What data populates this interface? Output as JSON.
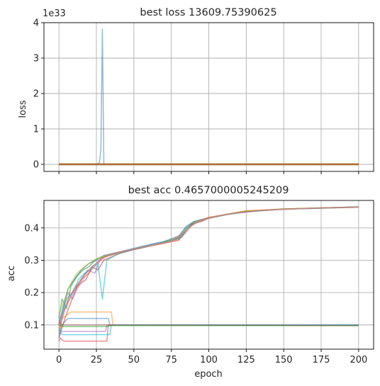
{
  "chart_data": [
    {
      "type": "line",
      "title": "best loss 13609.75390625",
      "xlabel": "",
      "ylabel": "loss",
      "offset_text": "1e33",
      "xlim": [
        -10,
        210
      ],
      "ylim": [
        -0.2,
        4.0
      ],
      "xticks": [
        0,
        25,
        50,
        75,
        100,
        125,
        150,
        175,
        200
      ],
      "yticks": [
        0,
        1,
        2,
        3,
        4
      ],
      "ytick_labels": [
        "0",
        "1",
        "2",
        "3",
        "4"
      ],
      "grid": true,
      "series": [
        {
          "color": "#1f77b4",
          "alpha": 0.5,
          "x": [
            0,
            25,
            27,
            28,
            29,
            30,
            200
          ],
          "y": [
            0,
            0,
            0.05,
            0.4,
            3.82,
            0,
            0
          ]
        },
        {
          "color": "#17becf",
          "alpha": 0.6,
          "x": [
            0,
            200
          ],
          "y": [
            0,
            0
          ]
        },
        {
          "color": "#2ca02c",
          "alpha": 0.6,
          "x": [
            0,
            200
          ],
          "y": [
            0,
            0
          ]
        },
        {
          "color": "#ff7f0e",
          "alpha": 0.5,
          "x": [
            0,
            200
          ],
          "y": [
            0,
            0
          ]
        },
        {
          "color": "#d62728",
          "alpha": 0.4,
          "x": [
            0,
            200
          ],
          "y": [
            0,
            0
          ]
        }
      ]
    },
    {
      "type": "line",
      "title": "best acc 0.4657000005245209",
      "xlabel": "epoch",
      "ylabel": "acc",
      "xlim": [
        -10,
        210
      ],
      "ylim": [
        0.025,
        0.485
      ],
      "xticks": [
        0,
        25,
        50,
        75,
        100,
        125,
        150,
        175,
        200
      ],
      "xtick_labels": [
        "0",
        "25",
        "50",
        "75",
        "100",
        "125",
        "150",
        "175",
        "200"
      ],
      "yticks": [
        0.1,
        0.2,
        0.3,
        0.4
      ],
      "ytick_labels": [
        "0.1",
        "0.2",
        "0.3",
        "0.4"
      ],
      "grid": true,
      "series": [
        {
          "color": "#1f77b4",
          "alpha": 0.6,
          "x": [
            0,
            3,
            6,
            10,
            15,
            20,
            25,
            30,
            40,
            50,
            60,
            70,
            80,
            85,
            90,
            100,
            110,
            125,
            150,
            175,
            200
          ],
          "y": [
            0.1,
            0.16,
            0.21,
            0.24,
            0.27,
            0.29,
            0.3,
            0.315,
            0.325,
            0.337,
            0.348,
            0.358,
            0.375,
            0.405,
            0.42,
            0.432,
            0.44,
            0.452,
            0.458,
            0.462,
            0.465
          ]
        },
        {
          "color": "#2ca02c",
          "alpha": 0.6,
          "x": [
            0,
            2,
            5,
            8,
            12,
            16,
            20,
            25,
            30,
            40,
            50,
            60,
            70,
            80,
            85,
            90,
            100,
            110,
            125,
            150,
            175,
            200
          ],
          "y": [
            0.12,
            0.18,
            0.15,
            0.22,
            0.25,
            0.27,
            0.28,
            0.305,
            0.31,
            0.322,
            0.335,
            0.345,
            0.356,
            0.37,
            0.4,
            0.418,
            0.43,
            0.44,
            0.45,
            0.458,
            0.461,
            0.464
          ]
        },
        {
          "color": "#ff7f0e",
          "alpha": 0.6,
          "x": [
            0,
            3,
            7,
            11,
            15,
            20,
            25,
            30,
            40,
            50,
            60,
            70,
            80,
            86,
            92,
            100,
            110,
            125,
            150,
            175,
            200
          ],
          "y": [
            0.09,
            0.14,
            0.19,
            0.21,
            0.24,
            0.26,
            0.29,
            0.31,
            0.323,
            0.334,
            0.344,
            0.355,
            0.365,
            0.4,
            0.42,
            0.433,
            0.441,
            0.453,
            0.459,
            0.462,
            0.465
          ]
        },
        {
          "color": "#d62728",
          "alpha": 0.55,
          "x": [
            0,
            4,
            8,
            12,
            18,
            22,
            26,
            30,
            40,
            50,
            60,
            70,
            80,
            88,
            95,
            100,
            112,
            125,
            150,
            175,
            200
          ],
          "y": [
            0.06,
            0.12,
            0.17,
            0.22,
            0.24,
            0.28,
            0.27,
            0.3,
            0.32,
            0.333,
            0.343,
            0.352,
            0.362,
            0.41,
            0.42,
            0.43,
            0.442,
            0.452,
            0.458,
            0.462,
            0.464
          ]
        },
        {
          "color": "#9467bd",
          "alpha": 0.55,
          "x": [
            0,
            3,
            6,
            9,
            14,
            19,
            24,
            28,
            35,
            45,
            55,
            65,
            75,
            82,
            88,
            95,
            105,
            120,
            140,
            170,
            200
          ],
          "y": [
            0.11,
            0.15,
            0.2,
            0.18,
            0.23,
            0.27,
            0.26,
            0.31,
            0.32,
            0.33,
            0.34,
            0.35,
            0.36,
            0.38,
            0.41,
            0.425,
            0.436,
            0.448,
            0.456,
            0.461,
            0.465
          ]
        },
        {
          "color": "#17becf",
          "alpha": 0.6,
          "x": [
            0,
            2,
            5,
            9,
            13,
            17,
            21,
            26,
            29,
            32,
            40,
            50,
            60,
            70,
            80,
            86,
            92,
            100,
            115,
            130,
            150,
            175,
            200
          ],
          "y": [
            0.1,
            0.13,
            0.18,
            0.2,
            0.24,
            0.26,
            0.27,
            0.29,
            0.18,
            0.3,
            0.322,
            0.333,
            0.344,
            0.355,
            0.366,
            0.4,
            0.418,
            0.43,
            0.444,
            0.452,
            0.458,
            0.461,
            0.465
          ]
        },
        {
          "color": "#8c564b",
          "alpha": 0.5,
          "x": [
            0,
            4,
            10,
            16,
            22,
            30,
            40,
            55,
            70,
            82,
            90,
            100,
            120,
            150,
            200
          ],
          "y": [
            0.08,
            0.15,
            0.21,
            0.25,
            0.28,
            0.31,
            0.325,
            0.338,
            0.354,
            0.372,
            0.415,
            0.43,
            0.448,
            0.458,
            0.465
          ]
        },
        {
          "color": "#bcbd22",
          "alpha": 0.55,
          "x": [
            0,
            3,
            7,
            12,
            17,
            23,
            28,
            36,
            48,
            62,
            74,
            84,
            92,
            104,
            125,
            160,
            200
          ],
          "y": [
            0.13,
            0.17,
            0.22,
            0.26,
            0.28,
            0.3,
            0.31,
            0.32,
            0.333,
            0.346,
            0.358,
            0.39,
            0.42,
            0.435,
            0.452,
            0.46,
            0.464
          ]
        },
        {
          "color": "#e377c2",
          "alpha": 0.5,
          "x": [
            0,
            5,
            10,
            15,
            20,
            25,
            33,
            45,
            60,
            75,
            85,
            95,
            110,
            135,
            165,
            200
          ],
          "y": [
            0.1,
            0.16,
            0.2,
            0.23,
            0.27,
            0.29,
            0.315,
            0.33,
            0.345,
            0.358,
            0.395,
            0.425,
            0.44,
            0.454,
            0.46,
            0.464
          ]
        },
        {
          "color": "#ff7f0e",
          "alpha": 0.5,
          "x": [
            0,
            2,
            8,
            30,
            35,
            36,
            200
          ],
          "y": [
            0.08,
            0.12,
            0.14,
            0.14,
            0.14,
            0.1,
            0.1
          ]
        },
        {
          "color": "#1f77b4",
          "alpha": 0.5,
          "x": [
            0,
            2,
            6,
            33,
            34,
            200
          ],
          "y": [
            0.07,
            0.1,
            0.12,
            0.12,
            0.1,
            0.1
          ]
        },
        {
          "color": "#9467bd",
          "alpha": 0.55,
          "x": [
            0,
            1,
            3,
            31,
            32,
            200
          ],
          "y": [
            0.06,
            0.08,
            0.08,
            0.08,
            0.1,
            0.1
          ]
        },
        {
          "color": "#d62728",
          "alpha": 0.5,
          "x": [
            0,
            1,
            3,
            32,
            33,
            200
          ],
          "y": [
            0.05,
            0.06,
            0.05,
            0.05,
            0.1,
            0.1
          ]
        },
        {
          "color": "#17becf",
          "alpha": 0.6,
          "x": [
            0,
            2,
            4,
            34,
            35,
            200
          ],
          "y": [
            0.09,
            0.07,
            0.07,
            0.07,
            0.1,
            0.1
          ]
        },
        {
          "color": "#2ca02c",
          "alpha": 0.6,
          "x": [
            0,
            3,
            33,
            34,
            200
          ],
          "y": [
            0.1,
            0.095,
            0.095,
            0.098,
            0.098
          ]
        },
        {
          "color": "#8c564b",
          "alpha": 0.5,
          "x": [
            0,
            2,
            30,
            200
          ],
          "y": [
            0.11,
            0.1,
            0.1,
            0.098
          ]
        }
      ]
    }
  ]
}
